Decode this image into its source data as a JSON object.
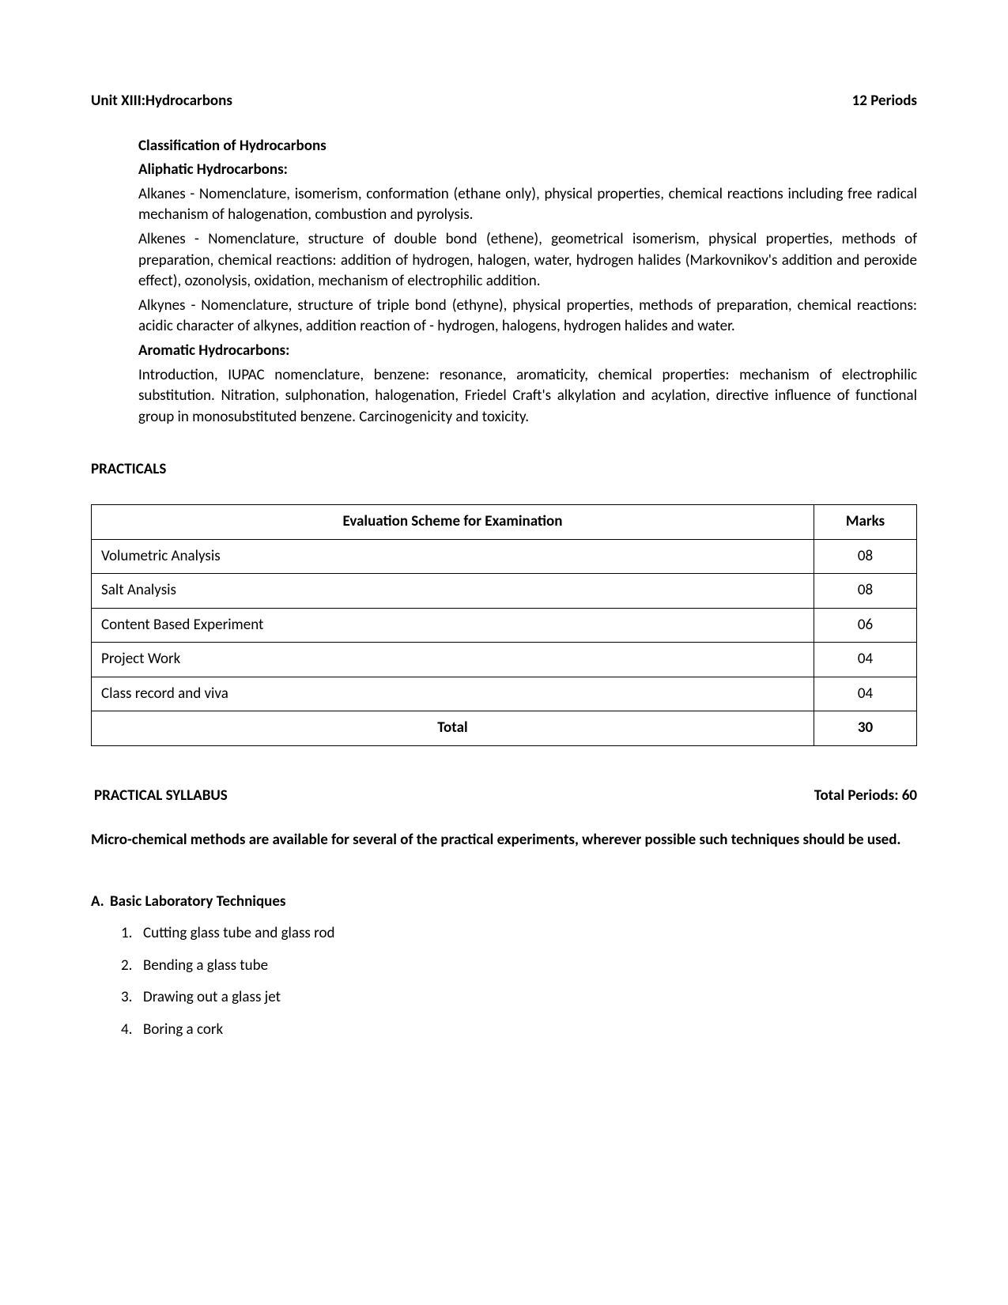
{
  "unit": {
    "title": "Unit XIII:Hydrocarbons",
    "periods": "12 Periods"
  },
  "classification_heading": "Classification of Hydrocarbons",
  "aliphatic_heading": " Aliphatic Hydrocarbons:",
  "alkanes": "Alkanes - Nomenclature, isomerism, conformation (ethane only), physical properties, chemical reactions including free radical mechanism of halogenation, combustion and pyrolysis.",
  "alkenes": "Alkenes - Nomenclature, structure of double bond (ethene), geometrical isomerism, physical properties, methods of preparation, chemical reactions: addition of hydrogen, halogen, water, hydrogen halides (Markovnikov's addition and peroxide effect), ozonolysis, oxidation, mechanism of electrophilic addition.",
  "alkynes": "Alkynes - Nomenclature, structure of triple bond (ethyne), physical properties, methods of preparation, chemical reactions: acidic character of alkynes, addition reaction of - hydrogen, halogens, hydrogen halides and water.",
  "aromatic_heading": "Aromatic Hydrocarbons:",
  "aromatic_body": "Introduction, IUPAC nomenclature, benzene: resonance, aromaticity, chemical properties: mechanism of electrophilic substitution. Nitration, sulphonation, halogenation, Friedel Craft's alkylation and acylation, directive influence of functional group in monosubstituted benzene. Carcinogenicity and toxicity.",
  "practicals_title": "PRACTICALS",
  "table": {
    "header_item": "Evaluation Scheme for Examination",
    "header_marks": "Marks",
    "rows": [
      {
        "item": "Volumetric Analysis",
        "marks": "08"
      },
      {
        "item": "Salt Analysis",
        "marks": "08"
      },
      {
        "item": "Content Based Experiment",
        "marks": "06"
      },
      {
        "item": "Project Work",
        "marks": "04"
      },
      {
        "item": "Class record and viva",
        "marks": "04"
      }
    ],
    "total_label": "Total",
    "total_marks": "30"
  },
  "practical_syllabus": {
    "title": "PRACTICAL SYLLABUS",
    "periods": "Total Periods: 60"
  },
  "micro_note": "Micro-chemical methods are available for several of the practical experiments, wherever possible such techniques should be used.",
  "section_a": {
    "prefix": "A.",
    "title": "Basic Laboratory Techniques",
    "items": [
      "Cutting glass tube and glass rod",
      "Bending a glass tube",
      "Drawing out a glass jet",
      "Boring a cork"
    ]
  }
}
